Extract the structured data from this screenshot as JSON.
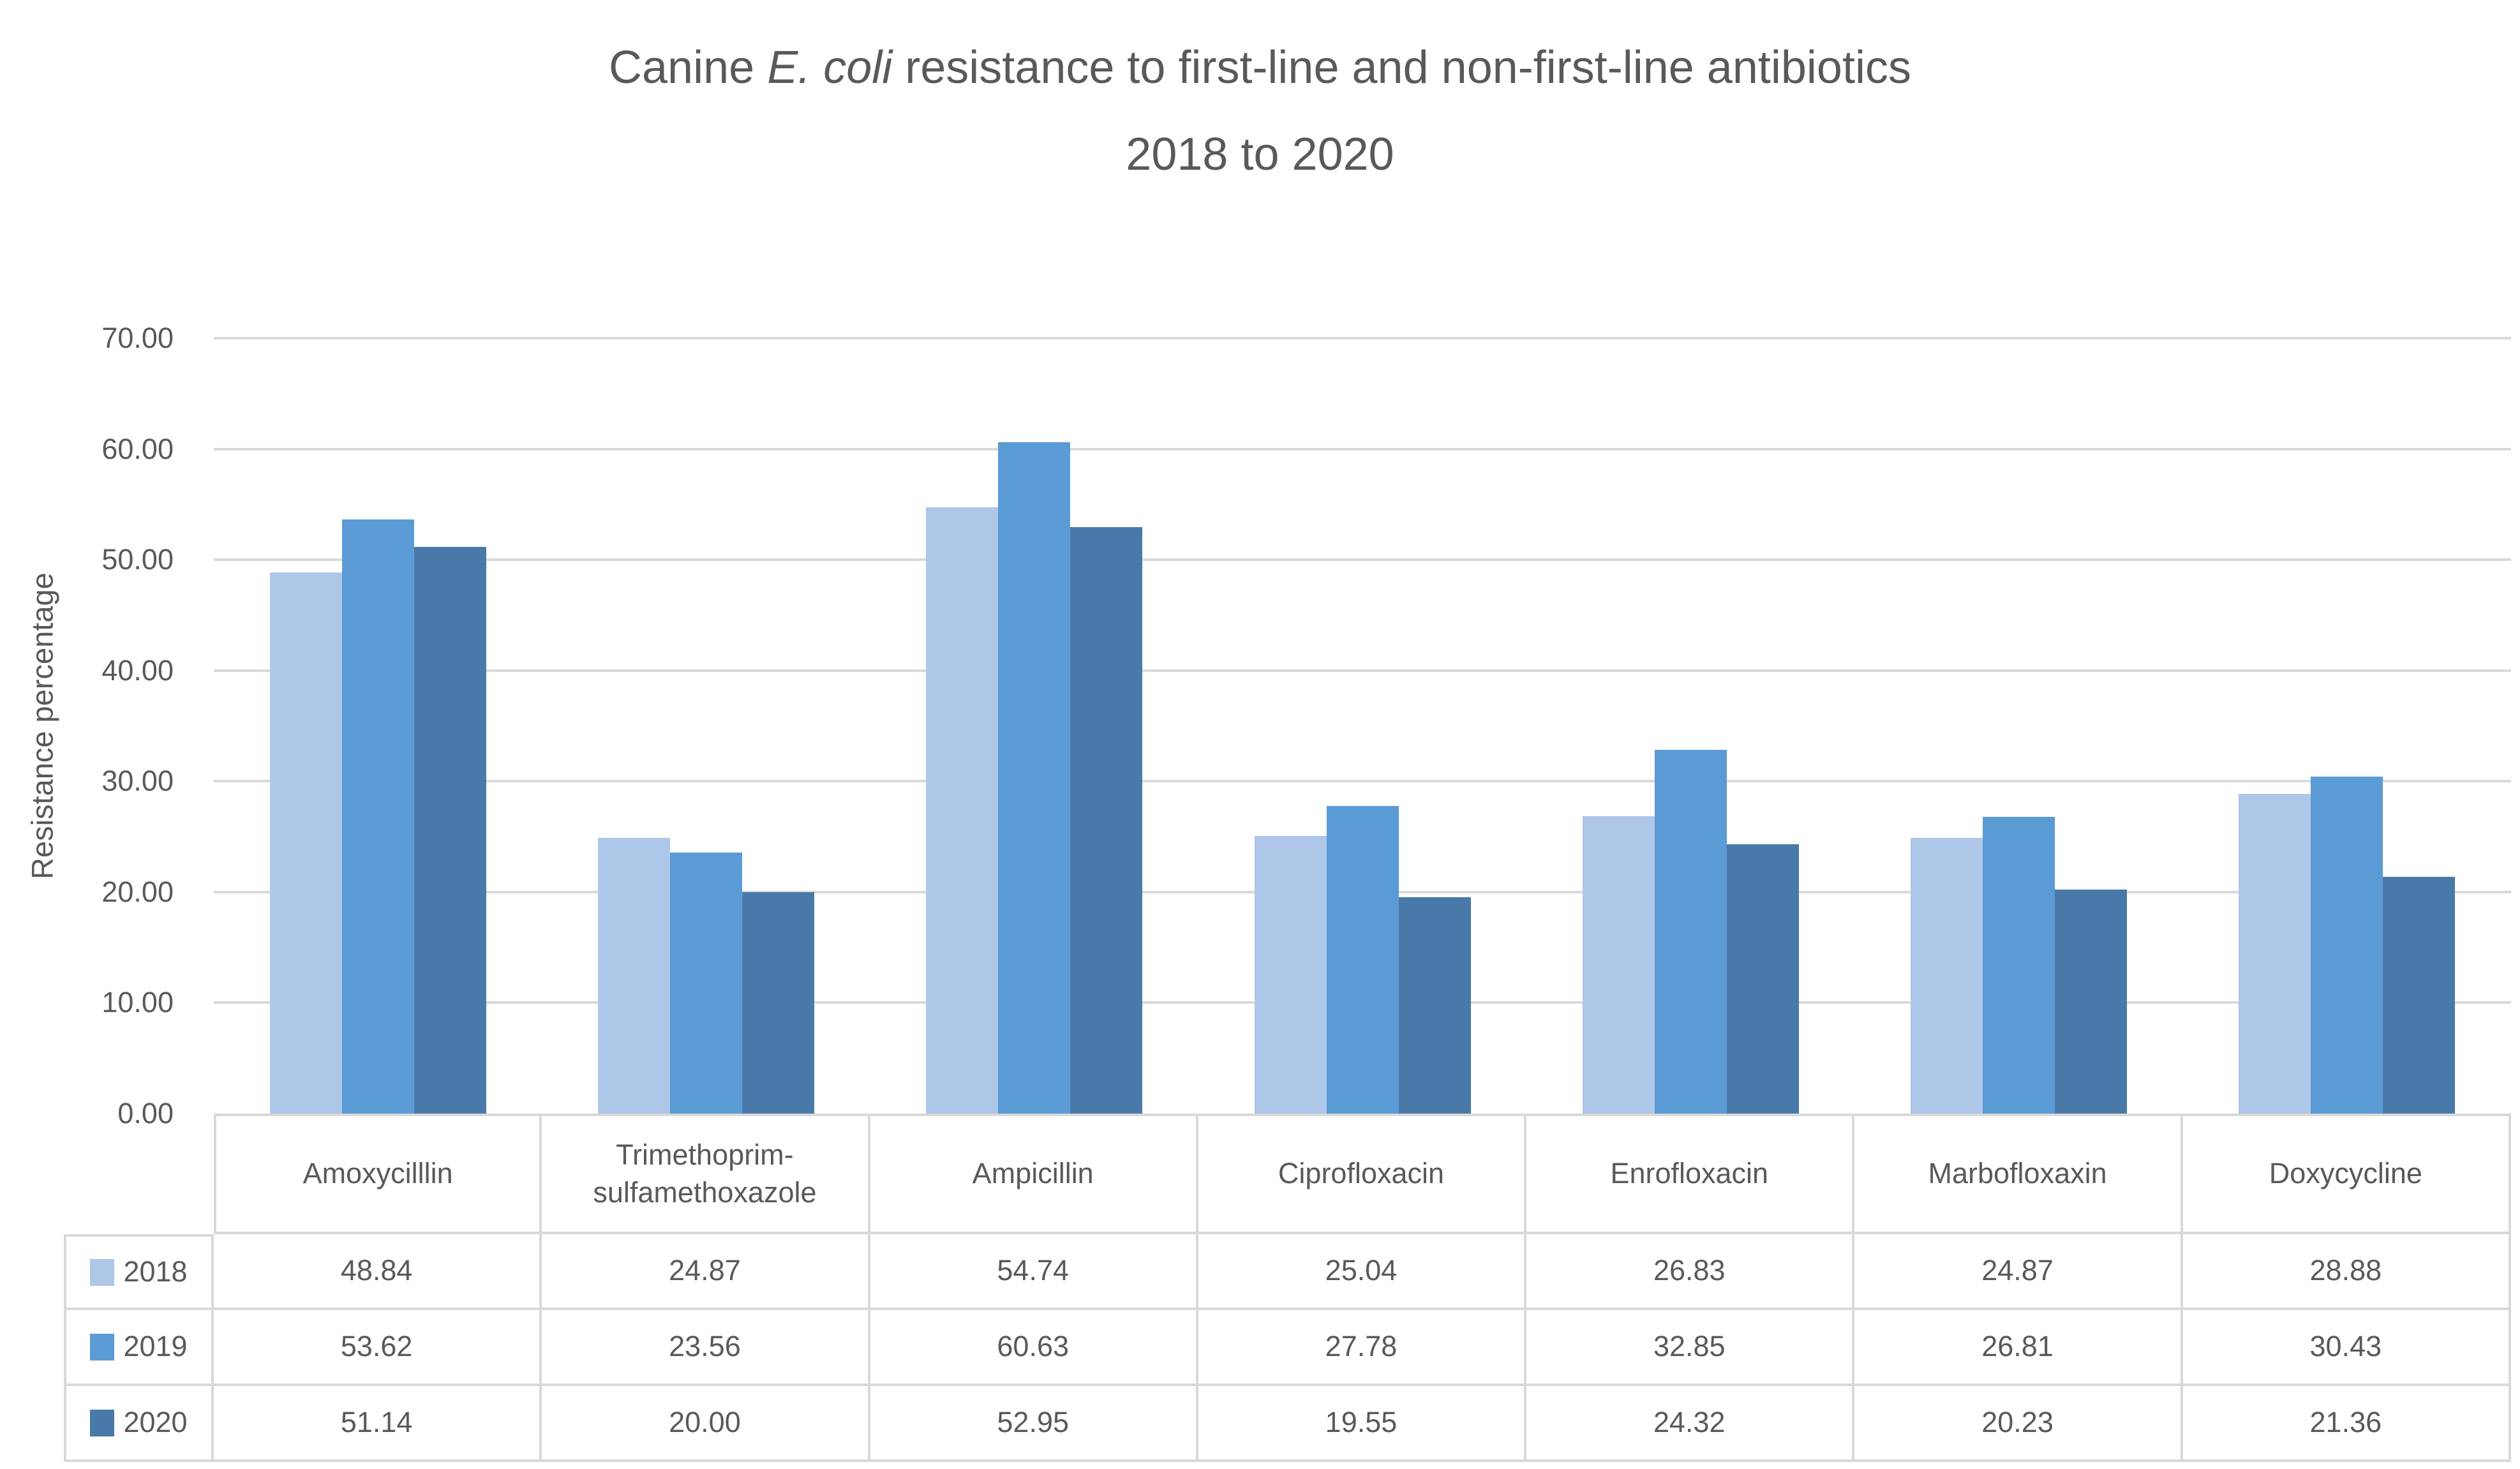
{
  "title": {
    "prefix": "Canine ",
    "italic": "E. coli",
    "suffix": " resistance to first-line and non-first-line antibiotics",
    "line2": "2018 to 2020"
  },
  "chart_data": {
    "type": "bar",
    "title": "Canine E. coli resistance to first-line and non-first-line antibiotics 2018 to 2020",
    "xlabel": "",
    "ylabel": "Resistance percentage",
    "ylim": [
      0,
      70
    ],
    "y_ticks": [
      0,
      10,
      20,
      30,
      40,
      50,
      60,
      70
    ],
    "y_tick_labels": [
      "0.00",
      "10.00",
      "20.00",
      "30.00",
      "40.00",
      "50.00",
      "60.00",
      "70.00"
    ],
    "grid": "horizontal-only",
    "gridline_color": "#D9D9D9",
    "text_color": "#595959",
    "legend_position": "table-left",
    "categories": [
      "Amoxycilllin",
      "Trimethoprim-sulfamethoxazole",
      "Ampicillin",
      "Ciprofloxacin",
      "Enrofloxacin",
      "Marbofloxaxin",
      "Doxycycline"
    ],
    "series": [
      {
        "name": "2018",
        "color": "#AEC6E8",
        "values": [
          48.84,
          24.87,
          54.74,
          25.04,
          26.83,
          24.87,
          28.88
        ]
      },
      {
        "name": "2019",
        "color": "#5B9BD5",
        "values": [
          53.62,
          23.56,
          60.63,
          27.78,
          32.85,
          26.81,
          30.43
        ]
      },
      {
        "name": "2020",
        "color": "#4979A8",
        "values": [
          51.14,
          20.0,
          52.95,
          19.55,
          24.32,
          20.23,
          21.36
        ]
      }
    ]
  }
}
